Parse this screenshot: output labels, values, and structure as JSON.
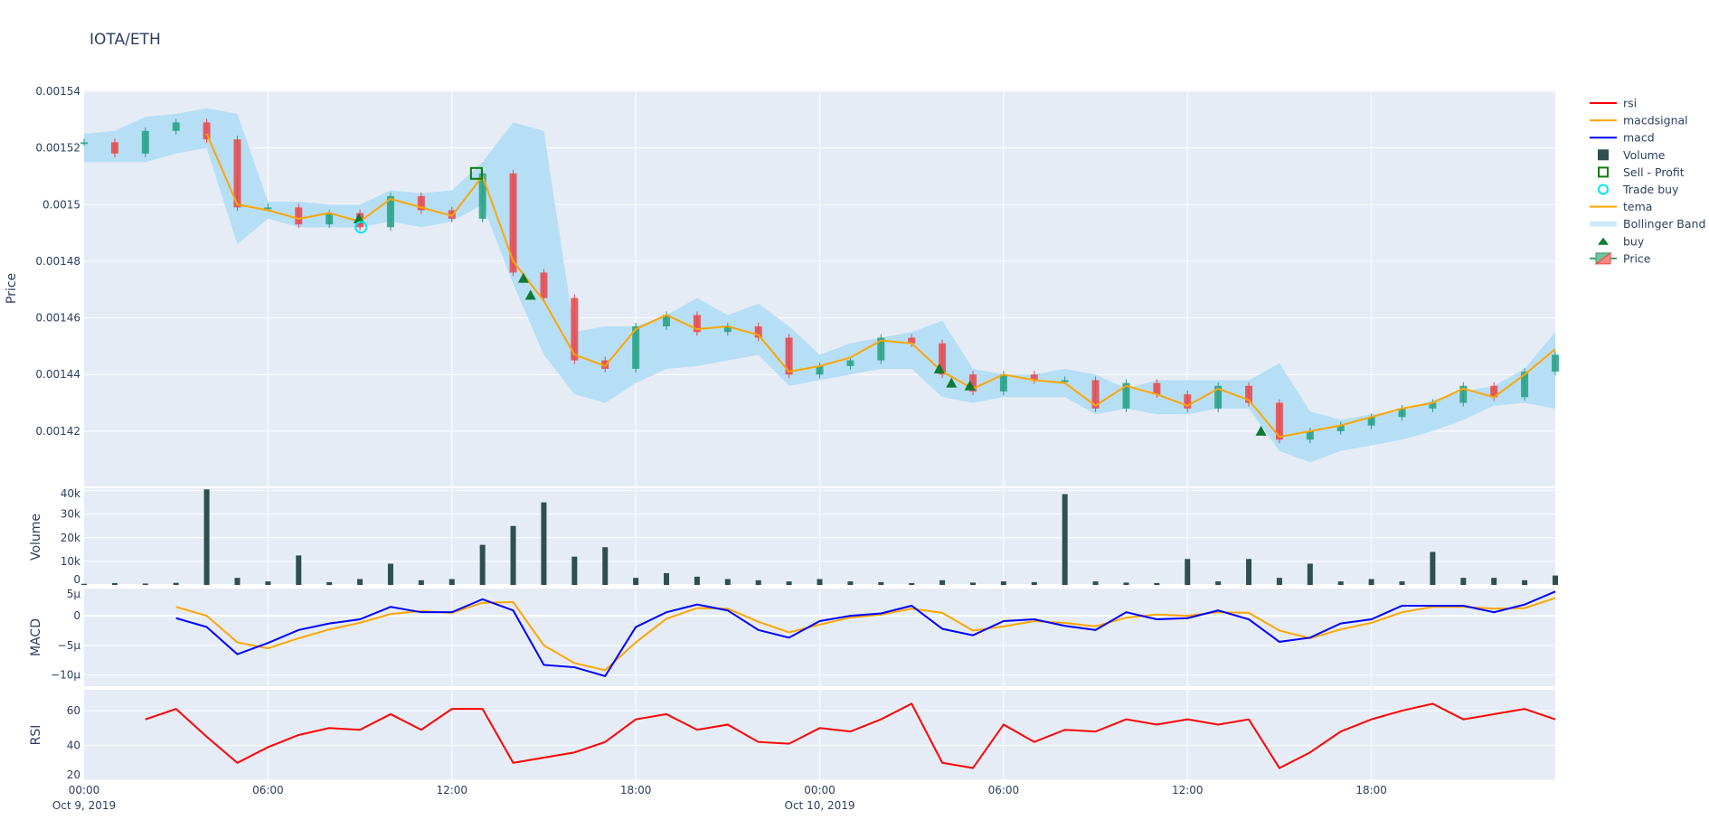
{
  "title": "IOTA/ETH",
  "colors": {
    "background": "#E5ECF6",
    "grid": "#ffffff",
    "increasing": "#26a083",
    "decreasing": "#e8474a",
    "tema": "#FFA500",
    "bollinger": "#b6def5",
    "buy": "#0e7a32",
    "trade_buy": "#00e5ee",
    "sell_profit": "#0b7d0b",
    "volume": "#2f4f4f",
    "macd": "#0000ff",
    "macdsignal": "#FFA500",
    "rsi": "#ff0000"
  },
  "legend": {
    "position": "right",
    "items": [
      {
        "label": "rsi",
        "icon": "red-line"
      },
      {
        "label": "macdsignal",
        "icon": "orange-line"
      },
      {
        "label": "macd",
        "icon": "blue-line"
      },
      {
        "label": "Volume",
        "icon": "dark-square"
      },
      {
        "label": "Sell - Profit",
        "icon": "green-open-square"
      },
      {
        "label": "Trade buy",
        "icon": "cyan-open-circle"
      },
      {
        "label": "tema",
        "icon": "orange-line"
      },
      {
        "label": "Bollinger Band",
        "icon": "lightblue-band"
      },
      {
        "label": "buy",
        "icon": "green-triangle"
      },
      {
        "label": "Price",
        "icon": "candlestick"
      }
    ]
  },
  "chart_data": [
    {
      "type": "candlestick",
      "ylabel": "Price",
      "ylim": [
        0.0014005,
        0.0015403
      ],
      "yticks": [
        {
          "value": 0.00154,
          "label": "0.00154"
        },
        {
          "value": 0.00152,
          "label": "0.00152"
        },
        {
          "value": 0.0015,
          "label": "0.0015"
        },
        {
          "value": 0.00148,
          "label": "0.00148"
        },
        {
          "value": 0.00146,
          "label": "0.00146"
        },
        {
          "value": 0.00144,
          "label": "0.00144"
        },
        {
          "value": 0.00142,
          "label": "0.00142"
        }
      ],
      "grid": true,
      "x_start": "2019-10-09 00:00",
      "x_step_hours": 1,
      "close": [
        0.001522,
        0.001518,
        0.001526,
        0.001529,
        0.001523,
        0.001499,
        0.001499,
        0.001493,
        0.001497,
        0.001492,
        0.001503,
        0.001498,
        0.001495,
        0.001511,
        0.001476,
        0.001467,
        0.001445,
        0.001442,
        0.001457,
        0.001461,
        0.001455,
        0.001457,
        0.001453,
        0.00144,
        0.001443,
        0.001445,
        0.001453,
        0.001451,
        0.00144,
        0.001434,
        0.00144,
        0.001438,
        0.001438,
        0.001428,
        0.001437,
        0.001433,
        0.001428,
        0.001436,
        0.00143,
        0.001417,
        0.00142,
        0.001422,
        0.001425,
        0.001428,
        0.00143,
        0.001436,
        0.001432,
        0.001441,
        0.001447
      ],
      "tema": [
        null,
        null,
        null,
        null,
        0.001525,
        0.0015,
        0.001498,
        0.001495,
        0.001497,
        0.001494,
        0.001502,
        0.001499,
        0.001496,
        0.00151,
        0.00148,
        0.001466,
        0.001447,
        0.001443,
        0.001456,
        0.001461,
        0.001456,
        0.001457,
        0.001454,
        0.001441,
        0.001443,
        0.001446,
        0.001452,
        0.001451,
        0.001441,
        0.001435,
        0.00144,
        0.001438,
        0.001437,
        0.001429,
        0.001436,
        0.001433,
        0.001429,
        0.001435,
        0.001431,
        0.001418,
        0.00142,
        0.001422,
        0.001425,
        0.001428,
        0.00143,
        0.001435,
        0.001432,
        0.00144,
        0.001449
      ],
      "bollinger_upper": [
        0.001525,
        0.001526,
        0.001531,
        0.001532,
        0.001534,
        0.001532,
        0.001501,
        0.001501,
        0.0015,
        0.0015,
        0.001505,
        0.001504,
        0.001505,
        0.001515,
        0.001529,
        0.001526,
        0.001455,
        0.001457,
        0.001457,
        0.001461,
        0.001467,
        0.001461,
        0.001465,
        0.001457,
        0.001447,
        0.001451,
        0.001453,
        0.001455,
        0.001459,
        0.001442,
        0.00144,
        0.00144,
        0.001442,
        0.00144,
        0.001435,
        0.001438,
        0.001438,
        0.001438,
        0.001438,
        0.001444,
        0.001427,
        0.001424,
        0.001426,
        0.001427,
        0.001431,
        0.001434,
        0.001436,
        0.001442,
        0.001455
      ],
      "bollinger_lower": [
        0.001515,
        0.001515,
        0.001515,
        0.001518,
        0.00152,
        0.001486,
        0.001495,
        0.001492,
        0.001492,
        0.001492,
        0.001494,
        0.001492,
        0.001494,
        0.0015,
        0.001472,
        0.001447,
        0.001433,
        0.00143,
        0.001437,
        0.001442,
        0.001443,
        0.001445,
        0.001447,
        0.001436,
        0.001438,
        0.00144,
        0.001442,
        0.001442,
        0.001432,
        0.00143,
        0.001432,
        0.001432,
        0.001432,
        0.001426,
        0.001428,
        0.001426,
        0.001426,
        0.001428,
        0.001428,
        0.001413,
        0.001409,
        0.001413,
        0.001415,
        0.001417,
        0.00142,
        0.001424,
        0.001429,
        0.00143,
        0.001428
      ],
      "buy": [
        {
          "time": "2019-10-09 08:58",
          "price": 0.001495
        },
        {
          "time": "2019-10-09 14:20",
          "price": 0.001474
        },
        {
          "time": "2019-10-09 14:34",
          "price": 0.001468
        },
        {
          "time": "2019-10-10 03:54",
          "price": 0.001442
        },
        {
          "time": "2019-10-10 04:18",
          "price": 0.001437
        },
        {
          "time": "2019-10-10 04:54",
          "price": 0.001436
        },
        {
          "time": "2019-10-10 14:24",
          "price": 0.00142
        }
      ],
      "trade_buy": [
        {
          "time": "2019-10-09 09:02",
          "price": 0.001492
        }
      ],
      "sell_profit": [
        {
          "time": "2019-10-09 12:48",
          "price": 0.001511
        }
      ]
    },
    {
      "type": "bar",
      "ylabel": "Volume",
      "ylim": [
        0,
        41000
      ],
      "yticks": [
        {
          "value": 0,
          "label": "0"
        },
        {
          "value": 10000,
          "label": "10k"
        },
        {
          "value": 20000,
          "label": "20k"
        },
        {
          "value": 30000,
          "label": "30k"
        },
        {
          "value": 40000,
          "label": "40k"
        }
      ],
      "values": [
        500,
        800,
        600,
        900,
        40500,
        3000,
        1500,
        12500,
        1200,
        2500,
        9000,
        2000,
        2500,
        17000,
        25000,
        35000,
        12000,
        16000,
        3000,
        5000,
        3500,
        2500,
        2000,
        1500,
        2500,
        1500,
        1200,
        800,
        2000,
        1000,
        1500,
        1200,
        38500,
        1500,
        1000,
        800,
        11000,
        1500,
        11000,
        3000,
        9000,
        1500,
        2500,
        1500,
        14000,
        3000,
        3000,
        2000,
        4000
      ]
    },
    {
      "type": "line",
      "ylabel": "MACD",
      "ylim": [
        -1.19e-05,
        4.6e-06
      ],
      "yticks": [
        {
          "value": 5e-06,
          "label": "5µ"
        },
        {
          "value": 0,
          "label": "0"
        },
        {
          "value": -5e-06,
          "label": "−5µ"
        },
        {
          "value": -1e-05,
          "label": "−10µ"
        }
      ],
      "series": [
        {
          "name": "macd",
          "values": [
            null,
            null,
            null,
            -4e-07,
            -1.9e-06,
            -6.5e-06,
            -4.6e-06,
            -2.4e-06,
            -1.3e-06,
            -6e-07,
            1.5e-06,
            6e-07,
            6e-07,
            2.8e-06,
            9e-07,
            -8.3e-06,
            -8.7e-06,
            -1.02e-05,
            -1.9e-06,
            6e-07,
            1.9e-06,
            9e-07,
            -2.4e-06,
            -3.7e-06,
            -9e-07,
            0,
            4e-07,
            1.7e-06,
            -2.2e-06,
            -3.3e-06,
            -9e-07,
            -6e-07,
            -1.7e-06,
            -2.4e-06,
            6e-07,
            -6e-07,
            -4e-07,
            9e-07,
            -6e-07,
            -4.4e-06,
            -3.7e-06,
            -1.3e-06,
            -6e-07,
            1.7e-06,
            1.7e-06,
            1.7e-06,
            6e-07,
            1.9e-06,
            4.1e-06
          ]
        },
        {
          "name": "macdsignal",
          "values": [
            null,
            null,
            null,
            1.5e-06,
            0,
            -4.5e-06,
            -5.5e-06,
            -3.8e-06,
            -2.3e-06,
            -1.2e-06,
            3e-07,
            8e-07,
            5e-07,
            2.2e-06,
            2.3e-06,
            -5e-06,
            -8e-06,
            -9.2e-06,
            -4.5e-06,
            -5e-07,
            1.3e-06,
            1.2e-06,
            -1e-06,
            -2.8e-06,
            -1.5e-06,
            -3e-07,
            2e-07,
            1.2e-06,
            5e-07,
            -2.5e-06,
            -1.8e-06,
            -9e-07,
            -1.2e-06,
            -1.8e-06,
            -3e-07,
            2e-07,
            0,
            6e-07,
            5e-07,
            -2.5e-06,
            -3.8e-06,
            -2.3e-06,
            -1.2e-06,
            6e-07,
            1.5e-06,
            1.5e-06,
            1.2e-06,
            1.3e-06,
            3e-06
          ]
        }
      ]
    },
    {
      "type": "line",
      "ylabel": "RSI",
      "ylim": [
        20,
        72
      ],
      "yticks": [
        {
          "value": 60,
          "label": "60"
        },
        {
          "value": 40,
          "label": "40"
        },
        {
          "value": 20,
          "label": "20"
        }
      ],
      "series": [
        {
          "name": "rsi",
          "values": [
            null,
            null,
            55,
            61,
            45,
            30,
            39,
            46,
            50,
            49,
            58,
            49,
            61,
            61,
            30,
            33,
            36,
            42,
            55,
            58,
            49,
            52,
            42,
            41,
            50,
            48,
            55,
            64,
            30,
            27,
            52,
            42,
            49,
            48,
            55,
            52,
            55,
            52,
            55,
            27,
            36,
            48,
            55,
            60,
            64,
            55,
            58,
            61,
            55
          ]
        }
      ]
    }
  ],
  "xaxis": {
    "range_hours": 48,
    "ticks": [
      {
        "hour": 0,
        "label": "00:00",
        "sublabel": "Oct 9, 2019"
      },
      {
        "hour": 6,
        "label": "06:00",
        "sublabel": ""
      },
      {
        "hour": 12,
        "label": "12:00",
        "sublabel": ""
      },
      {
        "hour": 18,
        "label": "18:00",
        "sublabel": ""
      },
      {
        "hour": 24,
        "label": "00:00",
        "sublabel": "Oct 10, 2019"
      },
      {
        "hour": 30,
        "label": "06:00",
        "sublabel": ""
      },
      {
        "hour": 36,
        "label": "12:00",
        "sublabel": ""
      },
      {
        "hour": 42,
        "label": "18:00",
        "sublabel": ""
      }
    ]
  }
}
